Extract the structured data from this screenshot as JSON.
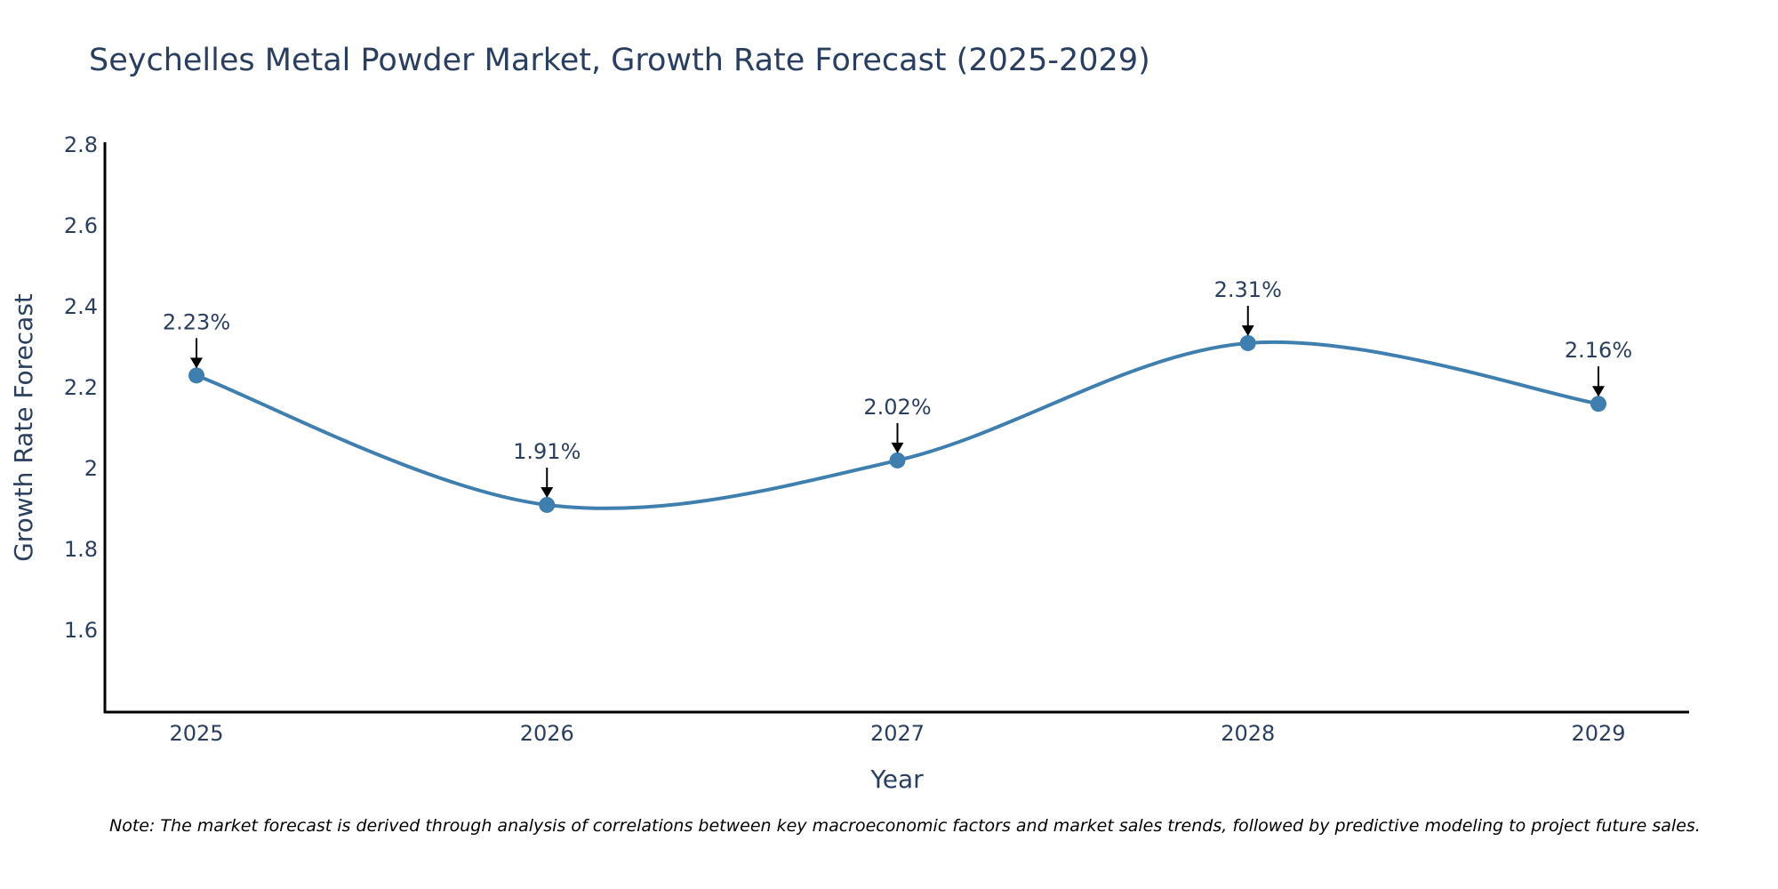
{
  "colors": {
    "line": "#3f7faf",
    "marker": "#3f7faf",
    "axis": "#000000",
    "text": "#2a3f5f",
    "arrow": "#000000"
  },
  "chart_data": {
    "type": "line",
    "title": "Seychelles Metal Powder Market, Growth Rate Forecast (2025-2029)",
    "xlabel": "Year",
    "ylabel": "Growth Rate Forecast",
    "categories": [
      "2025",
      "2026",
      "2027",
      "2028",
      "2029"
    ],
    "values": [
      2.23,
      1.91,
      2.02,
      2.31,
      2.16
    ],
    "annotations": [
      "2.23%",
      "1.91%",
      "2.02%",
      "2.31%",
      "2.16%"
    ],
    "yticks": [
      1.6,
      1.8,
      2,
      2.2,
      2.4,
      2.6,
      2.8
    ],
    "ylim": [
      1.4,
      2.8
    ],
    "line_shape": "spline",
    "grid": false
  },
  "note": "Note: The market forecast is derived through analysis of correlations between key macroeconomic factors and market sales trends, followed by predictive modeling to project future sales."
}
